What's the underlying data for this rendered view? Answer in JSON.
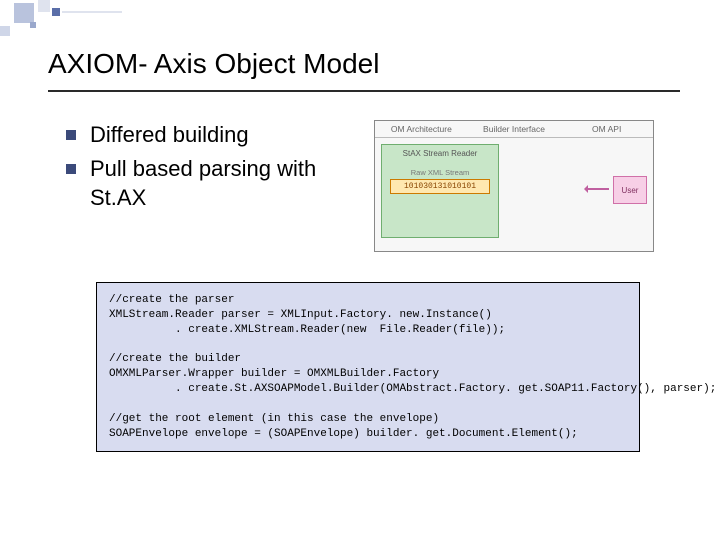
{
  "title": "AXIOM- Axis Object Model",
  "bullets": {
    "item1": "Differed building",
    "item2": "Pull based  parsing with St.AX"
  },
  "diagram": {
    "headers": {
      "arch": "OM Architecture",
      "builder": "Builder Interface",
      "api": "OM API"
    },
    "stax_label": "StAX Stream Reader",
    "raw_label": "Raw XML Stream",
    "raw_code": "101030131010101",
    "user_label": "User",
    "colors": {
      "stax_bg": "#c8e6c8",
      "stax_border": "#6fae6f",
      "raw_bg": "#ffe8b0",
      "raw_border": "#cc7a00",
      "user_bg": "#f7cfe6",
      "user_border": "#d070a8",
      "arrow": "#c060a0",
      "code_bg": "#d8dcf0"
    }
  },
  "code": "//create the parser\nXMLStream.Reader parser = XMLInput.Factory. new.Instance()\n          . create.XMLStream.Reader(new  File.Reader(file));\n\n//create the builder\nOMXMLParser.Wrapper builder = OMXMLBuilder.Factory\n          . create.St.AXSOAPModel.Builder(OMAbstract.Factory. get.SOAP11.Factory(), parser);\n\n//get the root element (in this case the envelope)\nSOAPEnvelope envelope = (SOAPEnvelope) builder. get.Document.Element();"
}
